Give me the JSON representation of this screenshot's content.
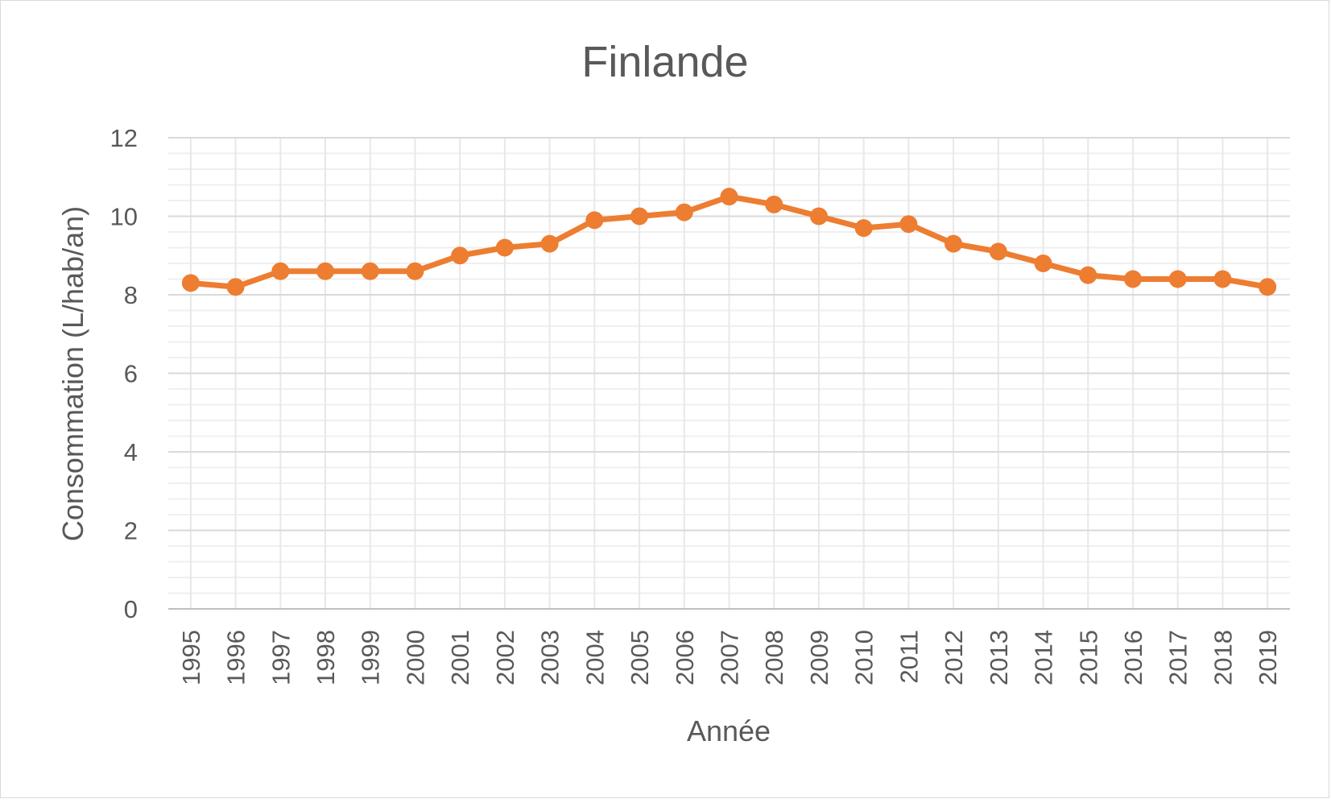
{
  "chart_data": {
    "type": "line",
    "title": "Finlande",
    "xlabel": "Année",
    "ylabel": "Consommation (L/hab/an)",
    "ylim": [
      0,
      12
    ],
    "y_major_ticks": [
      0,
      2,
      4,
      6,
      8,
      10,
      12
    ],
    "y_minor_step": 0.4,
    "grid": true,
    "legend": "none",
    "categories": [
      "1995",
      "1996",
      "1997",
      "1998",
      "1999",
      "2000",
      "2001",
      "2002",
      "2003",
      "2004",
      "2005",
      "2006",
      "2007",
      "2008",
      "2009",
      "2010",
      "2011",
      "2012",
      "2013",
      "2014",
      "2015",
      "2016",
      "2017",
      "2018",
      "2019"
    ],
    "series": [
      {
        "color": "#ED7D31",
        "values": [
          8.3,
          8.2,
          8.6,
          8.6,
          8.6,
          8.6,
          9.0,
          9.2,
          9.3,
          9.9,
          10.0,
          10.1,
          10.5,
          10.3,
          10.0,
          9.7,
          9.8,
          9.3,
          9.1,
          8.8,
          8.5,
          8.4,
          8.4,
          8.4,
          8.2
        ]
      }
    ]
  }
}
